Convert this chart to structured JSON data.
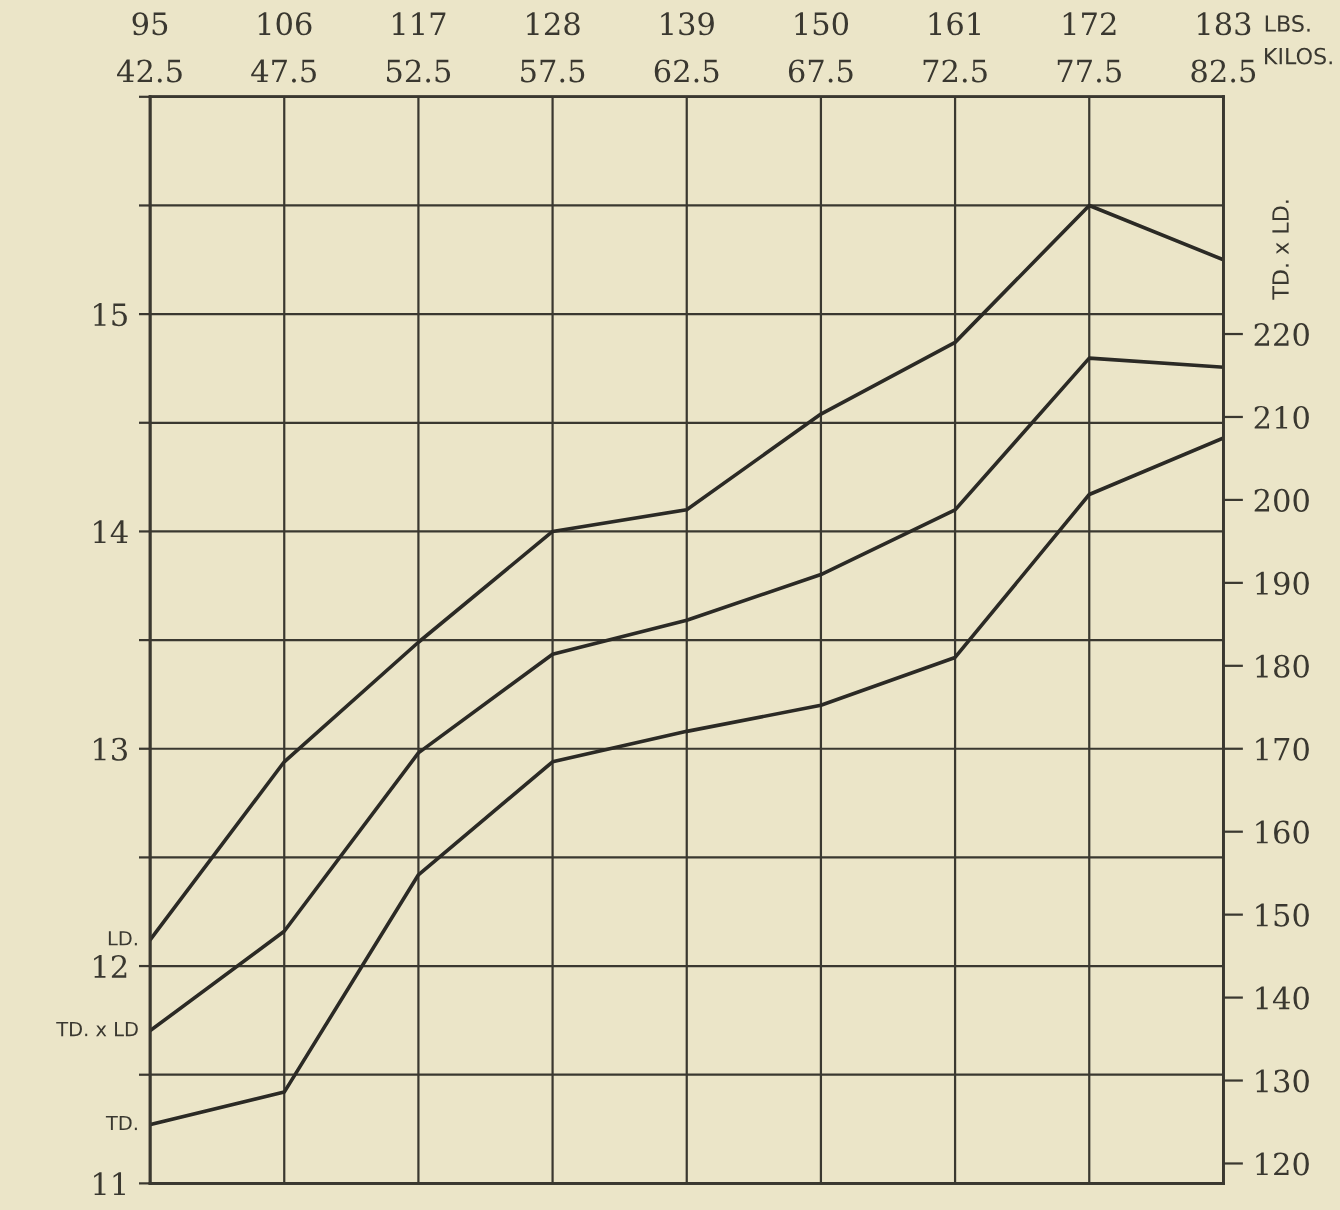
{
  "chart_data": {
    "type": "line",
    "xlabel": "LBS.",
    "x2label": "KILOS.",
    "y2label": "TD. x LD.",
    "x": [
      95,
      106,
      117,
      128,
      139,
      150,
      161,
      172,
      183
    ],
    "xlim": [
      95,
      183
    ],
    "xticks": [
      95,
      106,
      117,
      128,
      139,
      150,
      161,
      172,
      183
    ],
    "x2lim": [
      42.5,
      82.5
    ],
    "x2ticks": [
      42.5,
      47.5,
      52.5,
      57.5,
      62.5,
      67.5,
      72.5,
      77.5,
      82.5
    ],
    "ylim": [
      11,
      16
    ],
    "yticks": [
      11,
      {
        "value": 11.5,
        "label": null
      },
      12,
      {
        "value": 12.5,
        "label": null
      },
      13,
      {
        "value": 13.5,
        "label": null
      },
      14,
      {
        "value": 14.5,
        "label": null
      },
      15,
      {
        "value": 15.5,
        "label": null
      },
      {
        "value": 16,
        "label": null
      }
    ],
    "y2lim": [
      117.6,
      248.6
    ],
    "y2ticks": [
      120,
      130,
      140,
      150,
      160,
      170,
      180,
      190,
      200,
      210,
      220
    ],
    "grid": true,
    "marker": "none",
    "line_style": "solid",
    "series": [
      {
        "name": "LD.",
        "color": "#2b2a25",
        "values": [
          12.12,
          12.94,
          13.49,
          14.0,
          14.1,
          14.54,
          14.87,
          15.5,
          15.25
        ]
      },
      {
        "name": "TD. x LD",
        "color": "#2b2a25",
        "axis": "y2",
        "values": [
          136,
          148,
          169.5,
          181.4,
          185.5,
          191,
          198.8,
          217.1,
          216
        ]
      },
      {
        "name": "TD.",
        "color": "#2b2a25",
        "values": [
          11.27,
          11.42,
          12.42,
          12.94,
          13.08,
          13.2,
          13.42,
          14.17,
          14.43
        ]
      }
    ]
  }
}
